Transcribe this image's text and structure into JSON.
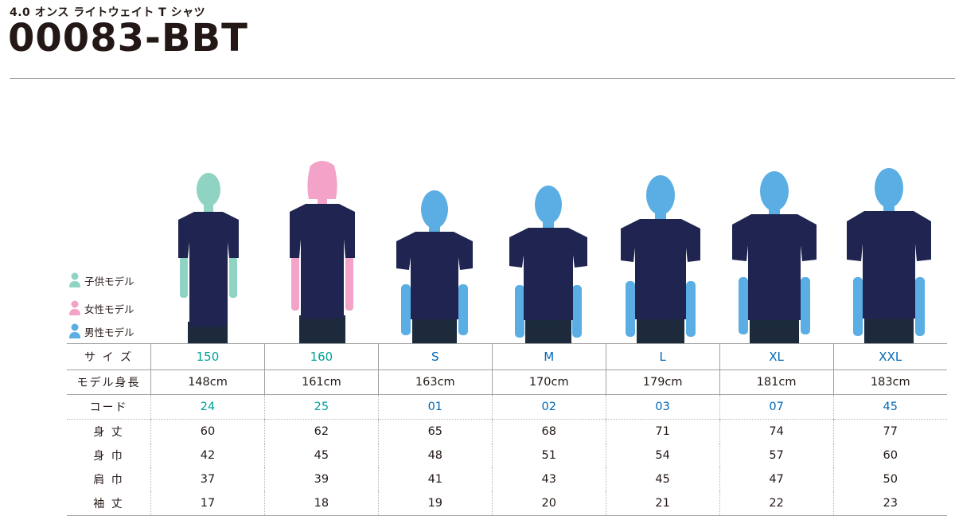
{
  "header": {
    "subtitle": "4.0 オンス ライトウェイト T シャツ",
    "title": "00083-BBT"
  },
  "legend": [
    {
      "label": "子供モデル",
      "color": "#8fd3c3",
      "icon": "child-model-icon"
    },
    {
      "label": "女性モデル",
      "color": "#f2a3c7",
      "icon": "female-model-icon"
    },
    {
      "label": "男性モデル",
      "color": "#5aaee3",
      "icon": "male-model-icon"
    }
  ],
  "colors": {
    "shirt": "#1f2550",
    "jeans": "#1c2a3c",
    "kid_text": "#00a29a",
    "adult_text": "#0068b7",
    "rule": "#9fa0a0"
  },
  "table": {
    "rows": [
      {
        "label": "サ イ ズ",
        "values": [
          "150",
          "160",
          "S",
          "M",
          "L",
          "XL",
          "XXL"
        ]
      },
      {
        "label": "モデル身長",
        "values": [
          "148cm",
          "161cm",
          "163cm",
          "170cm",
          "179cm",
          "181cm",
          "183cm"
        ]
      },
      {
        "label": "コード",
        "values": [
          "24",
          "25",
          "01",
          "02",
          "03",
          "07",
          "45"
        ]
      },
      {
        "label": "身 丈",
        "values": [
          "60",
          "62",
          "65",
          "68",
          "71",
          "74",
          "77"
        ]
      },
      {
        "label": "身 巾",
        "values": [
          "42",
          "45",
          "48",
          "51",
          "54",
          "57",
          "60"
        ]
      },
      {
        "label": "肩 巾",
        "values": [
          "37",
          "39",
          "41",
          "43",
          "45",
          "47",
          "50"
        ]
      },
      {
        "label": "袖 丈",
        "values": [
          "17",
          "18",
          "19",
          "20",
          "21",
          "22",
          "23"
        ]
      }
    ]
  }
}
